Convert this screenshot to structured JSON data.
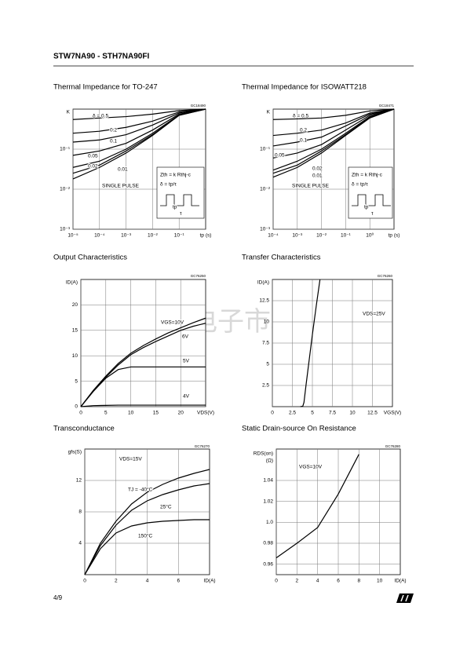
{
  "header": {
    "title": "STW7NA90 - STH7NA90FI"
  },
  "watermark": "维库电子市场网",
  "footer": {
    "page": "4/9"
  },
  "chart_data": [
    {
      "type": "line",
      "title": "Thermal Impedance for TO-247",
      "code": "GC18490",
      "x_label": "tp (s)",
      "y_label": "K",
      "xscale": "log",
      "yscale": "log",
      "grid": true,
      "color": "#000000",
      "xlim": [
        1e-05,
        1
      ],
      "ylim": [
        0.001,
        1
      ],
      "xticks": [
        {
          "value": 1e-05,
          "label": "10⁻⁵"
        },
        {
          "value": 0.0001,
          "label": "10⁻⁴"
        },
        {
          "value": 0.001,
          "label": "10⁻³"
        },
        {
          "value": 0.01,
          "label": "10⁻²"
        },
        {
          "value": 0.1,
          "label": "10⁻¹"
        }
      ],
      "yticks": [
        {
          "value": 0.1,
          "label": "10⁻¹"
        },
        {
          "value": 0.01,
          "label": "10⁻²"
        },
        {
          "value": 0.001,
          "label": "10⁻³"
        }
      ],
      "x": [
        1e-05,
        0.0001,
        0.001,
        0.01,
        0.1,
        1
      ],
      "series": [
        {
          "name": "δ = 0.5",
          "values": [
            0.55,
            0.6,
            0.65,
            0.75,
            0.92,
            1
          ]
        },
        {
          "name": "0.2",
          "values": [
            0.25,
            0.28,
            0.35,
            0.5,
            0.85,
            1
          ]
        },
        {
          "name": "0.1",
          "values": [
            0.15,
            0.17,
            0.23,
            0.4,
            0.8,
            1
          ]
        },
        {
          "name": "0.05",
          "values": [
            0.07,
            0.09,
            0.14,
            0.3,
            0.75,
            1
          ]
        },
        {
          "name": "0.02",
          "values": [
            0.035,
            0.05,
            0.1,
            0.25,
            0.72,
            1
          ]
        },
        {
          "name": "0.01",
          "values": [
            0.025,
            0.04,
            0.09,
            0.23,
            0.7,
            1
          ]
        },
        {
          "name": "SINGLE PULSE",
          "values": [
            0.018,
            0.035,
            0.08,
            0.22,
            0.7,
            1
          ]
        }
      ],
      "annotations": [
        "Zth = k Rthj-c",
        "δ = tp/τ",
        "tp",
        "τ"
      ]
    },
    {
      "type": "line",
      "title": "Thermal Impedance for ISOWATT218",
      "code": "GC18471",
      "x_label": "tp (s)",
      "y_label": "K",
      "xscale": "log",
      "yscale": "log",
      "grid": true,
      "color": "#000000",
      "xlim": [
        0.0001,
        10
      ],
      "ylim": [
        0.001,
        1
      ],
      "xticks": [
        {
          "value": 0.0001,
          "label": "10⁻⁴"
        },
        {
          "value": 0.001,
          "label": "10⁻³"
        },
        {
          "value": 0.01,
          "label": "10⁻²"
        },
        {
          "value": 0.1,
          "label": "10⁻¹"
        },
        {
          "value": 1,
          "label": "10⁰"
        }
      ],
      "yticks": [
        {
          "value": 0.1,
          "label": "10⁻¹"
        },
        {
          "value": 0.01,
          "label": "10⁻²"
        },
        {
          "value": 0.001,
          "label": "10⁻³"
        }
      ],
      "x": [
        0.0001,
        0.001,
        0.01,
        0.1,
        1,
        10
      ],
      "series": [
        {
          "name": "δ = 0.5",
          "values": [
            0.55,
            0.57,
            0.6,
            0.7,
            0.9,
            1
          ]
        },
        {
          "name": "0.2",
          "values": [
            0.22,
            0.25,
            0.3,
            0.45,
            0.8,
            1
          ]
        },
        {
          "name": "0.1",
          "values": [
            0.12,
            0.15,
            0.2,
            0.38,
            0.75,
            1
          ]
        },
        {
          "name": "0.05",
          "values": [
            0.06,
            0.08,
            0.13,
            0.3,
            0.7,
            1
          ]
        },
        {
          "name": "0.02",
          "values": [
            0.03,
            0.05,
            0.1,
            0.25,
            0.65,
            1
          ]
        },
        {
          "name": "0.01",
          "values": [
            0.025,
            0.04,
            0.09,
            0.23,
            0.63,
            1
          ]
        },
        {
          "name": "SINGLE PULSE",
          "values": [
            0.02,
            0.035,
            0.08,
            0.22,
            0.6,
            1
          ]
        }
      ],
      "annotations": [
        "Zth = k Rthj-c",
        "δ = tp/τ",
        "tp",
        "τ"
      ]
    },
    {
      "type": "line",
      "title": "Output Characteristics",
      "code": "GC76250",
      "x_label": "VDS(V)",
      "y_label": "ID(A)",
      "grid": true,
      "color": "#000000",
      "xlim": [
        0,
        25
      ],
      "ylim": [
        0,
        25
      ],
      "xticks": [
        0,
        5,
        10,
        15,
        20
      ],
      "yticks": [
        0,
        5,
        10,
        15,
        20
      ],
      "x": [
        0,
        2.5,
        5,
        7.5,
        10,
        12.5,
        15,
        17.5,
        20,
        22.5,
        25
      ],
      "series": [
        {
          "name": "VGS=10V",
          "values": [
            0,
            3.2,
            6,
            8.5,
            10.5,
            12,
            13.3,
            14.5,
            15.5,
            16.5,
            17.4
          ]
        },
        {
          "name": "6V",
          "values": [
            0,
            3.1,
            5.8,
            8.2,
            10.2,
            11.6,
            12.8,
            13.9,
            15,
            15.8,
            16.4
          ]
        },
        {
          "name": "5V",
          "values": [
            0,
            3,
            5.6,
            7.3,
            7.8,
            7.8,
            7.8,
            7.8,
            7.8,
            7.8,
            7.8
          ]
        },
        {
          "name": "4V",
          "values": [
            0,
            0.2,
            0.25,
            0.3,
            0.3,
            0.3,
            0.3,
            0.3,
            0.3,
            0.3,
            0.3
          ]
        }
      ]
    },
    {
      "type": "line",
      "title": "Transfer Characteristics",
      "code": "GC76260",
      "x_label": "VGS(V)",
      "y_label": "ID(A)",
      "grid": true,
      "color": "#000000",
      "xlim": [
        0,
        15
      ],
      "ylim": [
        0,
        15
      ],
      "xticks": [
        0,
        2.5,
        5,
        7.5,
        10,
        12.5
      ],
      "yticks": [
        2.5,
        5,
        7.5,
        10,
        12.5
      ],
      "x": [
        3.5,
        3.8,
        3.95,
        4.2,
        4.6,
        5,
        5.5,
        5.95
      ],
      "values": [
        0,
        0.05,
        0.5,
        2.5,
        5.5,
        8.5,
        12,
        15
      ],
      "annotations": [
        "VDS=25V"
      ]
    },
    {
      "type": "line",
      "title": "Transconductance",
      "code": "GC76270",
      "x_label": "ID(A)",
      "y_label": "gfs(S)",
      "grid": true,
      "color": "#000000",
      "xlim": [
        0,
        8
      ],
      "ylim": [
        0,
        16
      ],
      "xticks": [
        0,
        2,
        4,
        6
      ],
      "yticks": [
        4,
        8,
        12
      ],
      "x": [
        0,
        1,
        2,
        3,
        4,
        5,
        6,
        7,
        8
      ],
      "series": [
        {
          "name": "TJ = -40°C",
          "values": [
            0,
            4,
            6.8,
            9,
            10.5,
            11.5,
            12.3,
            12.9,
            13.4
          ]
        },
        {
          "name": "25°C",
          "values": [
            0,
            3.7,
            6.3,
            8.2,
            9.4,
            10.2,
            10.8,
            11.3,
            11.6
          ]
        },
        {
          "name": "150°C",
          "values": [
            0,
            3.3,
            5.3,
            6.2,
            6.6,
            6.8,
            6.9,
            7,
            7
          ]
        }
      ],
      "annotations": [
        "VDS=15V"
      ]
    },
    {
      "type": "line",
      "title": "Static Drain-source On Resistance",
      "code": "GC76280",
      "x_label": "ID(A)",
      "y_label": [
        "RDS(on)",
        "(Ω)"
      ],
      "grid": true,
      "color": "#000000",
      "xlim": [
        0,
        12
      ],
      "ylim": [
        0.95,
        1.07
      ],
      "xticks": [
        0,
        2,
        4,
        6,
        8,
        10
      ],
      "yticks": [
        0.96,
        0.98,
        {
          "value": 1,
          "label": "1.0"
        },
        1.02,
        1.04
      ],
      "x": [
        0,
        2,
        4,
        6,
        8
      ],
      "values": [
        0.966,
        0.98,
        0.995,
        1.027,
        1.065
      ],
      "annotations": [
        "VGS=10V"
      ]
    }
  ]
}
